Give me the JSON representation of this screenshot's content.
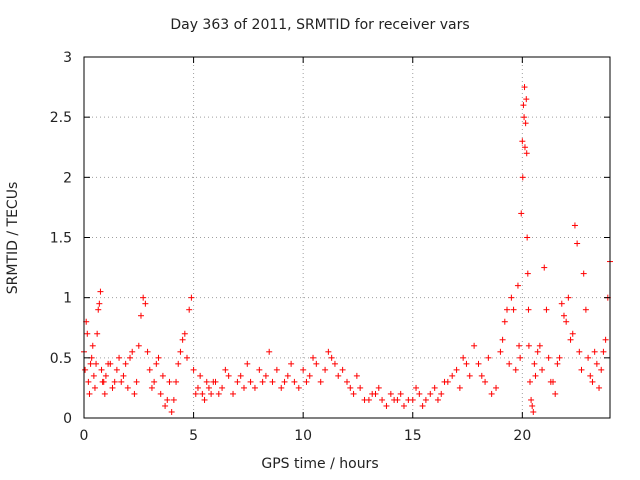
{
  "chart_data": {
    "type": "scatter",
    "title": "Day 363 of 2011, SRMTID for receiver vars",
    "xlabel": "GPS time / hours",
    "ylabel": "SRMTID / TECUs",
    "xlim": [
      0,
      24
    ],
    "ylim": [
      0,
      3
    ],
    "xticks": [
      0,
      5,
      10,
      15,
      20
    ],
    "yticks": [
      0,
      0.5,
      1,
      1.5,
      2,
      2.5,
      3
    ],
    "ytick_labels": [
      "0",
      "0.5",
      "1",
      "1.5",
      "2",
      "2.5",
      "3"
    ],
    "grid": true,
    "marker": "+",
    "series": [
      {
        "name": "SRMTID",
        "color": "#ff0000",
        "x": [
          0.0,
          0.1,
          0.2,
          0.3,
          0.4,
          0.5,
          0.6,
          0.7,
          0.8,
          0.9,
          1.0,
          1.2,
          1.4,
          1.6,
          1.8,
          2.0,
          2.2,
          2.4,
          2.6,
          2.8,
          3.0,
          3.2,
          3.4,
          3.6,
          3.8,
          4.0,
          4.2,
          4.4,
          4.6,
          4.8,
          5.0,
          5.2,
          5.4,
          5.6,
          5.8,
          6.0,
          6.3,
          6.6,
          7.0,
          7.3,
          7.6,
          8.0,
          8.3,
          8.6,
          9.0,
          9.3,
          9.6,
          10.0,
          10.3,
          10.6,
          11.0,
          11.3,
          11.6,
          12.0,
          12.3,
          12.6,
          13.0,
          13.3,
          13.6,
          14.0,
          14.3,
          14.6,
          15.0,
          15.3,
          15.6,
          16.0,
          16.3,
          16.6,
          17.0,
          17.3,
          17.6,
          18.0,
          18.3,
          18.6,
          19.0,
          19.2,
          19.4,
          19.6,
          19.8,
          19.9,
          20.0,
          20.05,
          20.1,
          20.15,
          20.2,
          20.25,
          20.3,
          20.4,
          20.5,
          20.6,
          20.8,
          21.0,
          21.2,
          21.4,
          21.6,
          21.8,
          22.0,
          22.2,
          22.4,
          22.6,
          22.8,
          23.0,
          23.2,
          23.4,
          23.6,
          23.8,
          24.0,
          0.05,
          0.15,
          0.25,
          0.35,
          0.45,
          0.55,
          0.65,
          0.75,
          0.85,
          0.95,
          1.1,
          1.3,
          1.5,
          1.7,
          1.9,
          2.1,
          2.3,
          2.5,
          2.7,
          2.9,
          3.1,
          3.3,
          3.5,
          3.7,
          3.9,
          4.1,
          4.3,
          4.5,
          4.7,
          4.9,
          5.1,
          5.3,
          5.5,
          5.7,
          5.9,
          6.15,
          6.45,
          6.8,
          7.15,
          7.45,
          7.8,
          8.15,
          8.45,
          8.8,
          9.15,
          9.45,
          9.8,
          10.15,
          10.45,
          10.8,
          11.15,
          11.45,
          11.8,
          12.15,
          12.45,
          12.8,
          13.15,
          13.45,
          13.8,
          14.15,
          14.45,
          14.8,
          15.15,
          15.45,
          15.8,
          16.15,
          16.45,
          16.8,
          17.15,
          17.45,
          17.8,
          18.15,
          18.45,
          18.8,
          19.1,
          19.3,
          19.5,
          19.7,
          19.85,
          19.95,
          20.02,
          20.08,
          20.12,
          20.18,
          20.22,
          20.28,
          20.35,
          20.45,
          20.55,
          20.7,
          20.9,
          21.1,
          21.3,
          21.5,
          21.7,
          21.9,
          22.1,
          22.3,
          22.5,
          22.7,
          22.9,
          23.1,
          23.3,
          23.5,
          23.7,
          23.9
        ],
        "y": [
          0.55,
          0.8,
          0.3,
          0.45,
          0.6,
          0.25,
          0.7,
          0.95,
          0.4,
          0.3,
          0.35,
          0.45,
          0.3,
          0.5,
          0.35,
          0.25,
          0.55,
          0.3,
          0.85,
          0.95,
          0.4,
          0.3,
          0.5,
          0.35,
          0.15,
          0.05,
          0.3,
          0.55,
          0.7,
          0.9,
          0.4,
          0.25,
          0.2,
          0.3,
          0.2,
          0.3,
          0.25,
          0.35,
          0.3,
          0.25,
          0.3,
          0.4,
          0.35,
          0.3,
          0.25,
          0.35,
          0.3,
          0.4,
          0.35,
          0.45,
          0.4,
          0.5,
          0.35,
          0.3,
          0.2,
          0.25,
          0.15,
          0.2,
          0.15,
          0.2,
          0.15,
          0.1,
          0.15,
          0.2,
          0.15,
          0.25,
          0.2,
          0.3,
          0.4,
          0.5,
          0.35,
          0.45,
          0.3,
          0.2,
          0.55,
          0.8,
          0.45,
          0.9,
          1.1,
          0.5,
          2.3,
          2.6,
          2.75,
          2.45,
          2.2,
          1.2,
          0.6,
          0.15,
          0.05,
          0.35,
          0.6,
          1.25,
          0.5,
          0.3,
          0.45,
          0.95,
          0.8,
          0.65,
          1.6,
          0.55,
          1.2,
          0.5,
          0.3,
          0.45,
          0.4,
          0.65,
          1.3,
          0.4,
          0.7,
          0.2,
          0.5,
          0.35,
          0.45,
          0.9,
          1.05,
          0.3,
          0.2,
          0.45,
          0.25,
          0.4,
          0.3,
          0.45,
          0.5,
          0.2,
          0.6,
          1.0,
          0.55,
          0.25,
          0.45,
          0.2,
          0.1,
          0.3,
          0.15,
          0.45,
          0.65,
          0.5,
          1.0,
          0.2,
          0.35,
          0.15,
          0.25,
          0.3,
          0.2,
          0.4,
          0.2,
          0.35,
          0.45,
          0.25,
          0.3,
          0.55,
          0.4,
          0.3,
          0.45,
          0.25,
          0.3,
          0.5,
          0.3,
          0.55,
          0.45,
          0.4,
          0.25,
          0.35,
          0.15,
          0.2,
          0.25,
          0.1,
          0.15,
          0.2,
          0.15,
          0.25,
          0.1,
          0.2,
          0.15,
          0.3,
          0.35,
          0.25,
          0.45,
          0.6,
          0.35,
          0.5,
          0.25,
          0.65,
          0.9,
          1.0,
          0.4,
          0.6,
          1.7,
          2.0,
          2.5,
          2.25,
          2.65,
          1.5,
          0.9,
          0.3,
          0.1,
          0.45,
          0.55,
          0.4,
          0.9,
          0.3,
          0.2,
          0.5,
          0.85,
          1.0,
          0.7,
          1.45,
          0.4,
          0.9,
          0.35,
          0.55,
          0.25,
          0.55,
          1.0
        ]
      }
    ]
  }
}
